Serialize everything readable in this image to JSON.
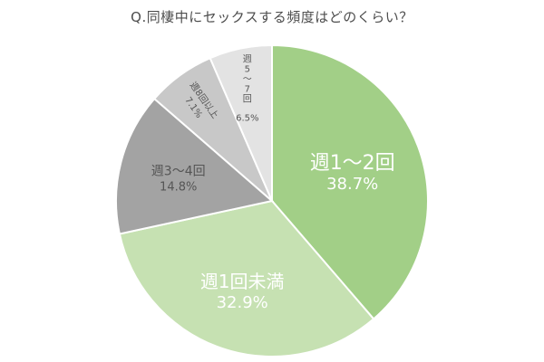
{
  "chart_data": {
    "type": "pie",
    "title": "Q.同棲中にセックスする頻度はどのくらい？",
    "slices": [
      {
        "label": "週1〜2回",
        "value_label": "38.7%",
        "value": 38.7,
        "color": "#a2cf87"
      },
      {
        "label": "週1回未満",
        "value_label": "32.9%",
        "value": 32.9,
        "color": "#c6e1b2"
      },
      {
        "label": "週3〜4回",
        "value_label": "14.8%",
        "value": 14.8,
        "color": "#a3a3a3"
      },
      {
        "label": "週8回以上",
        "value_label": "7.1%",
        "value": 7.1,
        "color": "#c8c8c8"
      },
      {
        "label": "週5〜7回",
        "value_label": "6.5%",
        "value": 6.5,
        "color": "#e3e3e3"
      }
    ],
    "start": "12 o'clock",
    "direction": "clockwise",
    "legend": "none"
  }
}
